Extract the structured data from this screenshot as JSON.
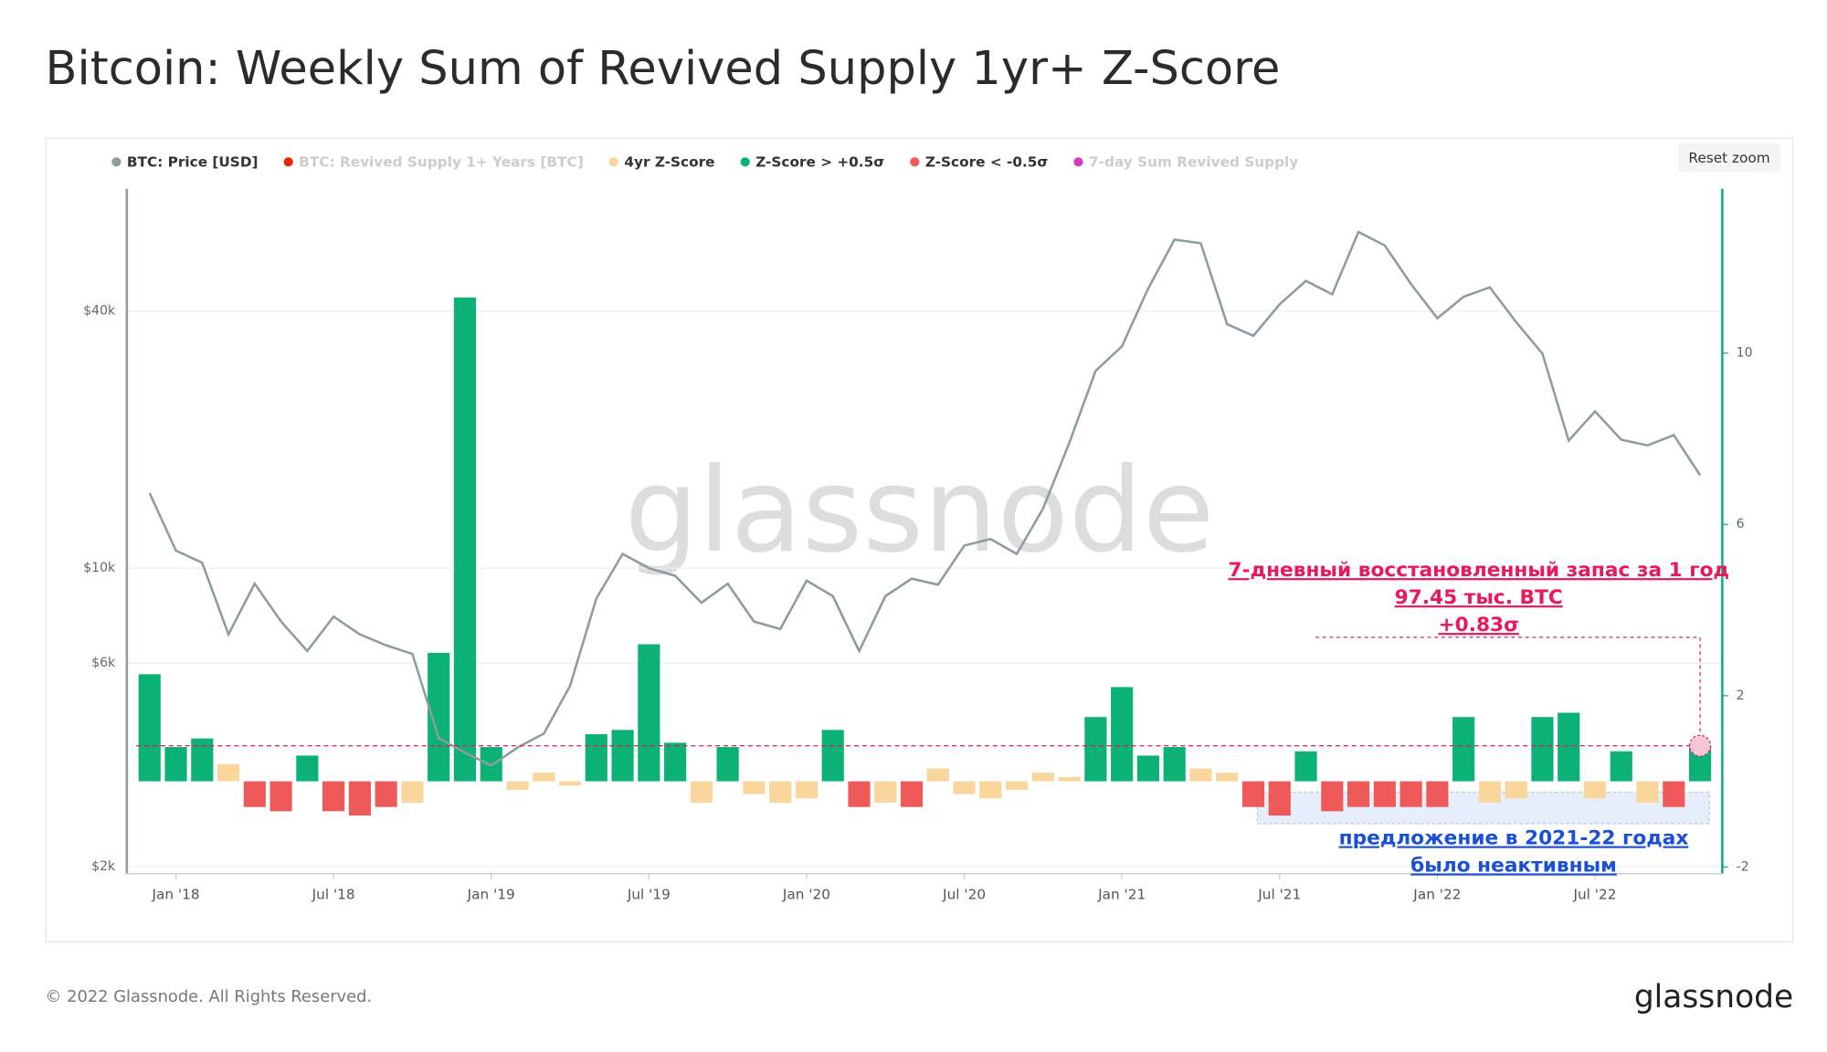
{
  "chart_data": {
    "type": "combo",
    "title": "Bitcoin: Weekly Sum of Revived Supply 1yr+ Z-Score",
    "x": [
      "2017-12",
      "2018-01",
      "2018-02",
      "2018-03",
      "2018-04",
      "2018-05",
      "2018-06",
      "2018-07",
      "2018-08",
      "2018-09",
      "2018-10",
      "2018-11",
      "2018-12",
      "2019-01",
      "2019-02",
      "2019-03",
      "2019-04",
      "2019-05",
      "2019-06",
      "2019-07",
      "2019-08",
      "2019-09",
      "2019-10",
      "2019-11",
      "2019-12",
      "2020-01",
      "2020-02",
      "2020-03",
      "2020-04",
      "2020-05",
      "2020-06",
      "2020-07",
      "2020-08",
      "2020-09",
      "2020-10",
      "2020-11",
      "2020-12",
      "2021-01",
      "2021-02",
      "2021-03",
      "2021-04",
      "2021-05",
      "2021-06",
      "2021-07",
      "2021-08",
      "2021-09",
      "2021-10",
      "2021-11",
      "2021-12",
      "2022-01",
      "2022-02",
      "2022-03",
      "2022-04",
      "2022-05",
      "2022-06",
      "2022-07",
      "2022-08",
      "2022-09",
      "2022-10",
      "2022-11"
    ],
    "xticks": [
      {
        "value": "2018-01",
        "label": "Jan '18"
      },
      {
        "value": "2018-07",
        "label": "Jul '18"
      },
      {
        "value": "2019-01",
        "label": "Jan '19"
      },
      {
        "value": "2019-07",
        "label": "Jul '19"
      },
      {
        "value": "2020-01",
        "label": "Jan '20"
      },
      {
        "value": "2020-07",
        "label": "Jul '20"
      },
      {
        "value": "2021-01",
        "label": "Jan '21"
      },
      {
        "value": "2021-07",
        "label": "Jul '21"
      },
      {
        "value": "2022-01",
        "label": "Jan '22"
      },
      {
        "value": "2022-07",
        "label": "Jul '22"
      }
    ],
    "series": [
      {
        "name": "BTC: Price [USD]",
        "color": "#8c9ca0",
        "type": "line",
        "values": [
          15000,
          11000,
          10300,
          7000,
          9200,
          7500,
          6400,
          7700,
          7000,
          6600,
          6300,
          4000,
          3700,
          3450,
          3800,
          4100,
          5300,
          8500,
          10800,
          10000,
          9600,
          8300,
          9200,
          7500,
          7200,
          9350,
          8600,
          6400,
          8600,
          9450,
          9150,
          11300,
          11700,
          10800,
          13800,
          19700,
          29000,
          33100,
          45200,
          58800,
          57700,
          37300,
          35000,
          41500,
          47100,
          43800,
          61300,
          57000,
          46300,
          38500,
          43200,
          45500,
          37700,
          31800,
          19900,
          23300,
          20000,
          19400,
          20500,
          16500
        ]
      },
      {
        "name": "BTC: Revived Supply 1+ Years [BTC]",
        "color": "#e8270a",
        "hidden": true
      },
      {
        "name": "4yr Z-Score",
        "color": "#f8d69c",
        "type": "bar",
        "axis": "y2",
        "values": [
          2.5,
          0.8,
          1.0,
          0.4,
          -0.6,
          -0.7,
          0.6,
          -0.7,
          -0.8,
          -0.6,
          -0.5,
          3.0,
          11.3,
          0.8,
          -0.2,
          0.2,
          -0.1,
          1.1,
          1.2,
          3.2,
          0.9,
          -0.5,
          0.8,
          -0.3,
          -0.5,
          -0.4,
          1.2,
          -0.6,
          -0.5,
          -0.6,
          0.3,
          -0.3,
          -0.4,
          -0.2,
          0.2,
          0.1,
          1.5,
          2.2,
          0.6,
          0.8,
          0.3,
          0.2,
          -0.6,
          -0.8,
          0.7,
          -0.7,
          -0.6,
          -0.6,
          -0.6,
          -0.6,
          1.5,
          -0.5,
          -0.4,
          1.5,
          1.6,
          -0.4,
          0.7,
          -0.5,
          -0.6,
          0.83
        ]
      },
      {
        "name": "Z-Score > +0.5σ",
        "color": "#0cb176",
        "threshold": 0.5
      },
      {
        "name": "Z-Score < -0.5σ",
        "color": "#ee5a5a",
        "threshold": -0.5
      },
      {
        "name": "7-day Sum Revived Supply",
        "color": "#d53cc0",
        "hidden": true
      }
    ],
    "log_scale": true,
    "ylim": [
      1925,
      77400
    ],
    "yticks": [
      {
        "value": 2000,
        "label": "$2k"
      },
      {
        "value": 6000,
        "label": "$6k"
      },
      {
        "value": 10000,
        "label": "$10k"
      },
      {
        "value": 40000,
        "label": "$40k"
      }
    ],
    "y2lim": [
      -2.16,
      13.84
    ],
    "y2ticks": [
      -2,
      2,
      6,
      10
    ],
    "annotations": [
      {
        "lines": [
          "7-дневный восстановленный запас за 1 год",
          "97.45 тыс. BTC",
          "+0.83σ"
        ],
        "color": "#e8185a"
      },
      {
        "lines": [
          "предложение в 2021-22 годах",
          "было неактивным"
        ],
        "color": "#1a4fd6"
      }
    ],
    "watermark": "glassnode"
  },
  "button": "Reset zoom",
  "footer": "© 2022 Glassnode. All Rights Reserved.",
  "logo": "glassnode"
}
